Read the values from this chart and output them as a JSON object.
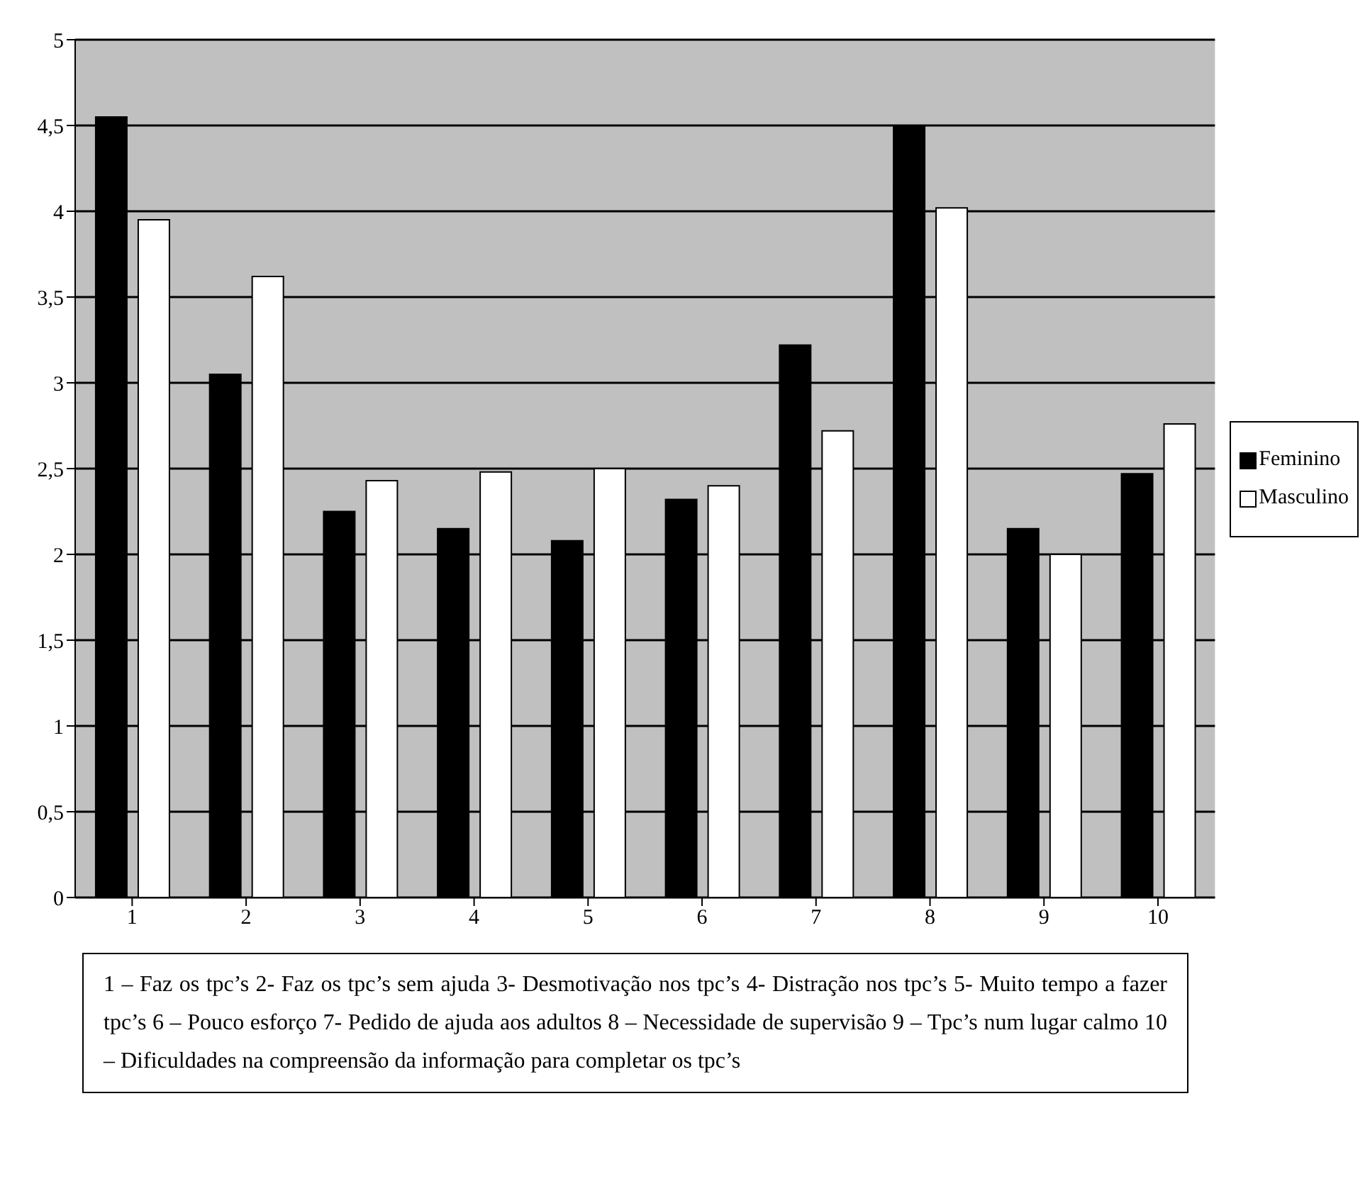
{
  "chart_data": {
    "type": "bar",
    "categories": [
      "1",
      "2",
      "3",
      "4",
      "5",
      "6",
      "7",
      "8",
      "9",
      "10"
    ],
    "series": [
      {
        "name": "Feminino",
        "color": "#000000",
        "values": [
          4.55,
          3.05,
          2.25,
          2.15,
          2.08,
          2.32,
          3.22,
          4.5,
          2.15,
          2.47
        ]
      },
      {
        "name": "Masculino",
        "color": "#ffffff",
        "values": [
          3.95,
          3.62,
          2.43,
          2.48,
          2.5,
          2.4,
          2.72,
          4.02,
          2.0,
          2.76
        ]
      }
    ],
    "ylim": [
      0,
      5
    ],
    "yticks": [
      0,
      {
        "value": 0.5,
        "label": "0,5"
      },
      1,
      {
        "value": 1.5,
        "label": "1,5"
      },
      2,
      {
        "value": 2.5,
        "label": "2,5"
      },
      3,
      {
        "value": 3.5,
        "label": "3,5"
      },
      4,
      {
        "value": 4.5,
        "label": "4,5"
      },
      5
    ],
    "grid": "y",
    "legend": "right",
    "annotations": [
      "1 – Faz os tpc’s    2- Faz os tpc’s sem ajuda    3- Desmotivação nos tpc’s    4- Distração nos tpc’s    5- Muito tempo a fazer tpc’s    6 – Pouco esforço    7- Pedido de ajuda aos adultos    8 – Necessidade de supervisão    9 – Tpc’s num lugar calmo    10 – Dificuldades na compreensão da informação para completar os tpc’s"
    ]
  }
}
